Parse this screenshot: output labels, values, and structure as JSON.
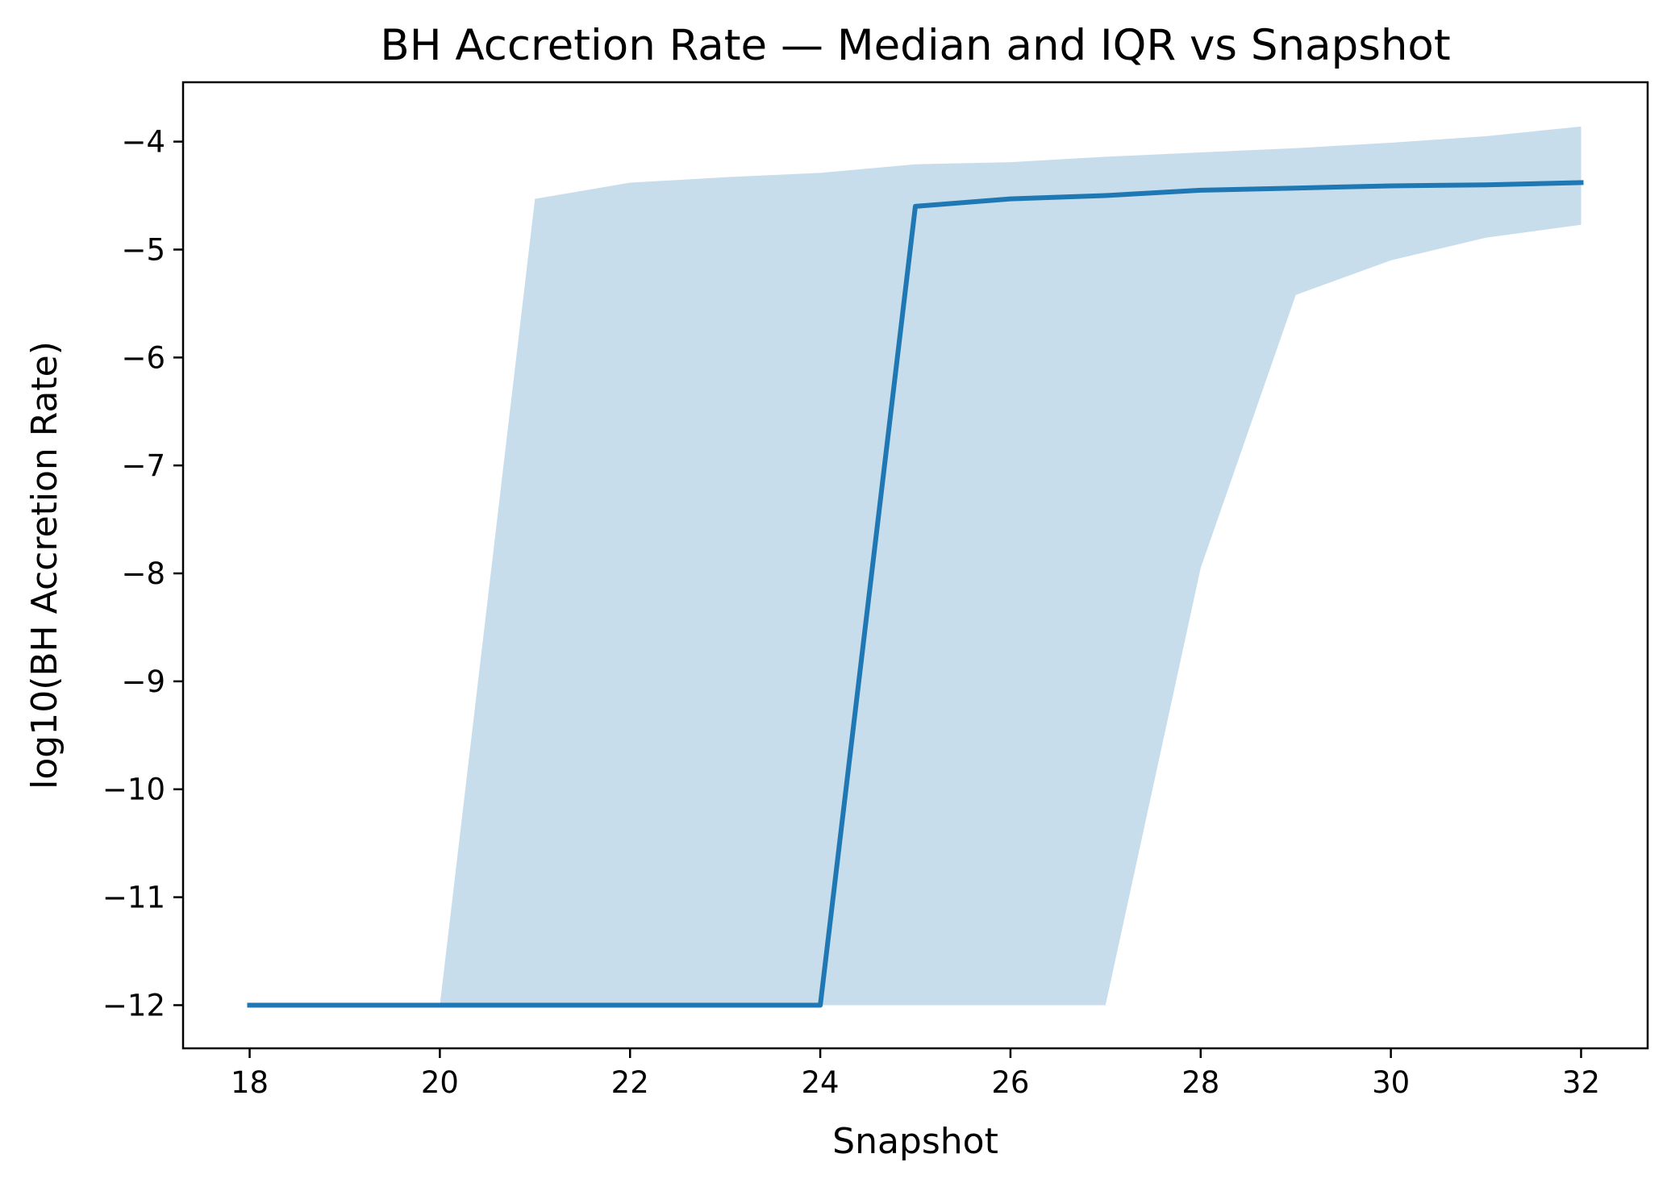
{
  "chart_data": {
    "type": "line",
    "title": "BH Accretion Rate — Median and IQR vs Snapshot",
    "xlabel": "Snapshot",
    "ylabel": "log10(BH Accretion Rate)",
    "xlim": [
      17.3,
      32.7
    ],
    "ylim": [
      -12.4,
      -3.45
    ],
    "xticks": [
      18,
      20,
      22,
      24,
      26,
      28,
      30,
      32
    ],
    "xtick_labels": [
      "18",
      "20",
      "22",
      "24",
      "26",
      "28",
      "30",
      "32"
    ],
    "yticks": [
      -4,
      -5,
      -6,
      -7,
      -8,
      -9,
      -10,
      -11,
      -12
    ],
    "ytick_labels": [
      "−4",
      "−5",
      "−6",
      "−7",
      "−8",
      "−9",
      "−10",
      "−11",
      "−12"
    ],
    "x": [
      18,
      19,
      20,
      21,
      22,
      23,
      24,
      25,
      26,
      27,
      28,
      29,
      30,
      31,
      32
    ],
    "series": [
      {
        "kind": "line",
        "values": [
          -12,
          -12,
          -12,
          -12,
          -12,
          -12,
          -12,
          -4.6,
          -4.53,
          -4.5,
          -4.45,
          -4.43,
          -4.41,
          -4.4,
          -4.38
        ],
        "color": "#1f77b4"
      },
      {
        "kind": "band",
        "lower": [
          -12,
          -12,
          -12,
          -12,
          -12,
          -12,
          -12,
          -12,
          -12,
          -12,
          -7.95,
          -5.42,
          -5.1,
          -4.89,
          -4.77
        ],
        "upper": [
          -12,
          -12,
          -12,
          -4.53,
          -4.38,
          -4.33,
          -4.29,
          -4.21,
          -4.19,
          -4.14,
          -4.1,
          -4.06,
          -4.01,
          -3.95,
          -3.86
        ],
        "color": "#1f77b4",
        "opacity": 0.25
      }
    ],
    "grid": false,
    "legend": "none"
  }
}
